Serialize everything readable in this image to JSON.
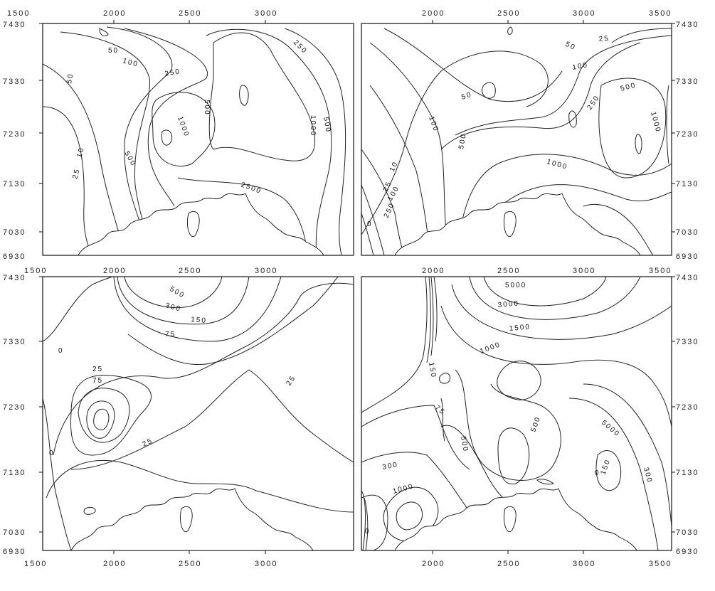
{
  "ticks": {
    "top_x": [
      "1500",
      "2000",
      "2500",
      "3000",
      "2000",
      "2500",
      "3000",
      "3500"
    ],
    "mid_x": [
      "1500",
      "2000",
      "2500",
      "3000",
      "2000",
      "2500",
      "3000",
      "3500"
    ],
    "bottom_x": [
      "1500",
      "2000",
      "2500",
      "3000",
      "2000",
      "2500",
      "3000",
      "3500"
    ],
    "left_y_top": [
      "7430",
      "7330",
      "7230",
      "7130",
      "7030",
      "6930"
    ],
    "left_y_bottom": [
      "7430",
      "7330",
      "7230",
      "7130",
      "7030",
      "6930"
    ],
    "right_y_top": [
      "7430",
      "7330",
      "7230",
      "7130",
      "7030",
      "6930"
    ],
    "right_y_bottom": [
      "7430",
      "7330",
      "7230",
      "7130",
      "7030",
      "6930"
    ]
  },
  "panels": {
    "top_left": {
      "contour_labels": [
        "50",
        "100",
        "250",
        "500",
        "1000",
        "500",
        "1000",
        "500",
        "50",
        "25",
        "10",
        "2500",
        "250"
      ]
    },
    "top_right": {
      "contour_labels": [
        "50",
        "25",
        "100",
        "50",
        "250",
        "500",
        "1000",
        "1000",
        "500",
        "100",
        "10",
        "25",
        "100",
        "250",
        "0"
      ]
    },
    "bottom_left": {
      "contour_labels": [
        "500",
        "300",
        "150",
        "75",
        "25",
        "75",
        "25",
        "25",
        "0",
        "0"
      ]
    },
    "bottom_right": {
      "contour_labels": [
        "5000",
        "3000",
        "1500",
        "1000",
        "150",
        "75",
        "500",
        "500",
        "5000",
        "300",
        "1000",
        "150",
        "0",
        "300",
        "0"
      ]
    }
  }
}
